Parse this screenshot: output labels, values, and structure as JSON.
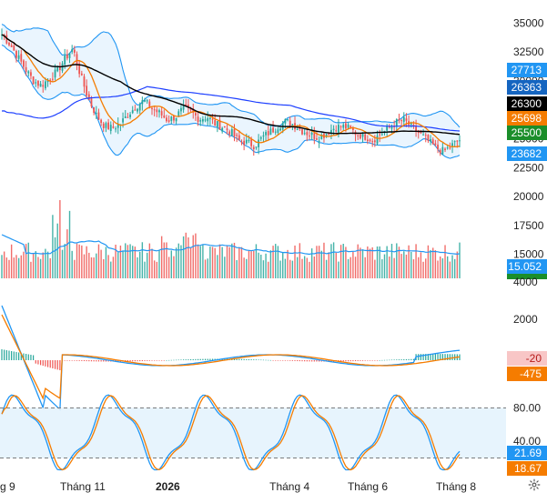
{
  "chart_data": [
    {
      "type": "candlestick",
      "panel": "price",
      "yticks": [
        "35000",
        "32500",
        "30000",
        "27500",
        "25000",
        "22500",
        "20000",
        "17500",
        "15000"
      ],
      "ytick_values": [
        35000,
        32500,
        30000,
        27500,
        25000,
        22500,
        20000,
        17500,
        15000
      ],
      "ylim": [
        13800,
        36200
      ],
      "overlays": [
        {
          "kind": "bollinger-upper",
          "color": "#2196f3"
        },
        {
          "kind": "bollinger-lower",
          "color": "#2196f3"
        },
        {
          "kind": "moving-average",
          "color": "#f57c00"
        },
        {
          "kind": "moving-average",
          "color": "#000000"
        },
        {
          "kind": "moving-average",
          "color": "#1e40ff"
        }
      ],
      "price_badges": [
        {
          "value": 27713,
          "label": "27713",
          "bg": "#2196f3",
          "fg": "#ffffff"
        },
        {
          "value": 26363,
          "label": "26363",
          "bg": "#1565c0",
          "fg": "#ffffff"
        },
        {
          "value": 26300,
          "label": "26300",
          "bg": "#000000",
          "fg": "#ffffff"
        },
        {
          "value": 25698,
          "label": "25698",
          "bg": "#f57c00",
          "fg": "#ffffff"
        },
        {
          "value": 25500,
          "label": "25500",
          "bg": "#1b8e2a",
          "fg": "#ffffff"
        },
        {
          "value": 23682,
          "label": "23682",
          "bg": "#2196f3",
          "fg": "#ffffff"
        }
      ],
      "closes_approx": [
        34000,
        33200,
        32100,
        31000,
        30000,
        29600,
        30200,
        30800,
        31900,
        32800,
        30400,
        28400,
        27000,
        26100,
        25900,
        26300,
        27100,
        27800,
        28300,
        27600,
        27200,
        26600,
        26900,
        27600,
        27300,
        26700,
        26900,
        26300,
        26000,
        25600,
        24800,
        24700,
        24400,
        25100,
        25600,
        26100,
        26500,
        26200,
        25700,
        25400,
        25100,
        25400,
        25900,
        26100,
        25900,
        25400,
        25200,
        24900,
        25400,
        25900,
        26400,
        26600,
        25900,
        25400,
        24800,
        24200,
        23900,
        24400,
        24900
      ]
    },
    {
      "type": "bar",
      "panel": "volume",
      "yticks": [
        "4000"
      ],
      "overlays": [
        {
          "kind": "volume-ma",
          "color": "#2196f3"
        }
      ],
      "badge": {
        "label": "15.052",
        "bg": "#2196f3",
        "fg": "#ffffff"
      },
      "note_color_up": "#26a69a",
      "note_color_down": "#ef5350"
    },
    {
      "type": "histogram",
      "panel": "macd",
      "yticks": [
        "2000"
      ],
      "series": [
        {
          "name": "",
          "kind": "macd",
          "color": "#2196f3"
        },
        {
          "name": "",
          "kind": "signal",
          "color": "#f57c00"
        }
      ],
      "badges": [
        {
          "label": "-20",
          "bg": "#f8c6c6",
          "fg": "#b71c1c"
        },
        {
          "label": "-475",
          "bg": "#f57c00",
          "fg": "#ffffff"
        }
      ]
    },
    {
      "type": "line",
      "panel": "stochastic",
      "yticks": [
        "80.00",
        "40.00"
      ],
      "ytick_values": [
        80,
        40
      ],
      "ylim": [
        0,
        100
      ],
      "band": [
        20,
        80
      ],
      "series": [
        {
          "name": "",
          "color": "#2196f3"
        },
        {
          "name": "",
          "color": "#f57c00"
        }
      ],
      "badges": [
        {
          "label": "21.69",
          "bg": "#2196f3",
          "fg": "#ffffff"
        },
        {
          "label": "18.67",
          "bg": "#f57c00",
          "fg": "#ffffff"
        }
      ]
    }
  ],
  "x_axis": {
    "labels": [
      {
        "text": "g 9",
        "at": 0.0
      },
      {
        "text": "Tháng 11",
        "at": 0.18
      },
      {
        "text": "2026",
        "at": 0.365
      },
      {
        "text": "Tháng 4",
        "at": 0.63
      },
      {
        "text": "Tháng 6",
        "at": 0.8
      },
      {
        "text": "Tháng 8",
        "at": 1.0
      }
    ],
    "bold_label": "2026"
  },
  "settings_icon": "gear-icon"
}
